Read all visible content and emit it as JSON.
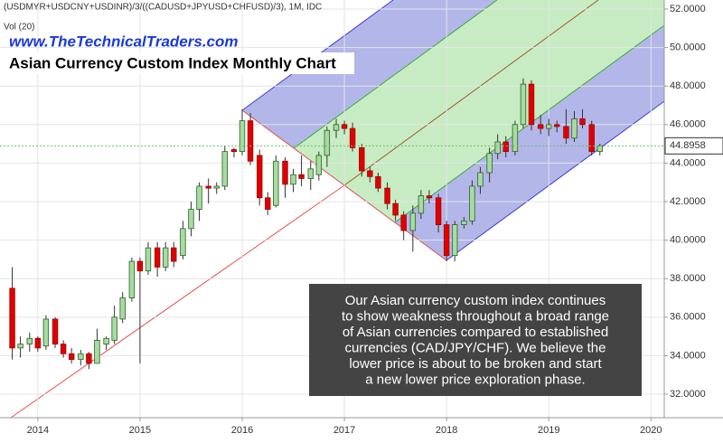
{
  "chart_data": {
    "type": "candlestick",
    "symbol": "(USDMYR+USDCNY+USDINR)/3/((CADUSD+JPYUSD+CHFUSD)/3), 1M, IDC",
    "volume_label": "Vol (20)",
    "website": "www.TheTechnicalTraders.com",
    "title": "Asian Currency Custom Index Monthly Chart",
    "annotation": [
      "Our Asian currency custom index continues",
      "to show weakness throughout a broad range",
      "of Asian currencies compared to established",
      "currencies (CAD/JPY/CHF).  We believe the",
      "lower price is about to be broken and start",
      "a new lower price exploration phase."
    ],
    "last_price": {
      "value": 44.8958,
      "label": "44.8958"
    },
    "up_color": "#a6dca0",
    "down_color": "#e00000",
    "xlim": [
      2013.63,
      2020.13
    ],
    "ylim": [
      30.78,
      52.47
    ],
    "xticks": [
      2014,
      2015,
      2016,
      2017,
      2018,
      2019,
      2020
    ],
    "yticks": [
      {
        "value": 32,
        "label": "32.0000"
      },
      {
        "value": 34,
        "label": "34.0000"
      },
      {
        "value": 36,
        "label": "36.0000"
      },
      {
        "value": 38,
        "label": "38.0000"
      },
      {
        "value": 40,
        "label": "40.0000"
      },
      {
        "value": 42,
        "label": "42.0000"
      },
      {
        "value": 44,
        "label": "44.0000"
      },
      {
        "value": 46,
        "label": "46.0000"
      },
      {
        "value": 48,
        "label": "48.0000"
      },
      {
        "value": 50,
        "label": "50.0000"
      },
      {
        "value": 52,
        "label": "52.0000"
      }
    ],
    "x": [
      2013.75,
      2013.83,
      2013.92,
      2014.0,
      2014.08,
      2014.17,
      2014.25,
      2014.33,
      2014.42,
      2014.5,
      2014.58,
      2014.67,
      2014.75,
      2014.83,
      2014.92,
      2015.0,
      2015.08,
      2015.17,
      2015.25,
      2015.33,
      2015.42,
      2015.5,
      2015.58,
      2015.67,
      2015.75,
      2015.83,
      2015.92,
      2016.0,
      2016.08,
      2016.17,
      2016.25,
      2016.33,
      2016.42,
      2016.5,
      2016.58,
      2016.67,
      2016.75,
      2016.83,
      2016.92,
      2017.0,
      2017.08,
      2017.17,
      2017.25,
      2017.33,
      2017.42,
      2017.5,
      2017.58,
      2017.67,
      2017.75,
      2017.83,
      2017.92,
      2018.0,
      2018.08,
      2018.17,
      2018.25,
      2018.33,
      2018.42,
      2018.5,
      2018.58,
      2018.67,
      2018.75,
      2018.83,
      2018.92,
      2019.0,
      2019.08,
      2019.17,
      2019.25,
      2019.33,
      2019.42,
      2019.5
    ],
    "open": [
      37.5,
      34.4,
      34.6,
      34.9,
      34.5,
      35.9,
      34.6,
      34.1,
      33.8,
      34.1,
      33.6,
      34.6,
      34.8,
      35.9,
      37.0,
      38.9,
      38.4,
      39.6,
      38.6,
      39.6,
      39.2,
      40.6,
      41.6,
      42.8,
      42.7,
      42.8,
      44.7,
      44.6,
      46.2,
      44.4,
      42.2,
      41.8,
      44.1,
      42.9,
      43.4,
      43.2,
      43.4,
      44.4,
      45.7,
      46.0,
      45.8,
      44.8,
      43.6,
      43.3,
      42.7,
      41.9,
      41.3,
      40.5,
      41.4,
      42.3,
      42.2,
      40.8,
      39.2,
      40.8,
      41.0,
      42.8,
      43.5,
      44.5,
      45.1,
      44.6,
      46.0,
      48.1,
      46.0,
      45.8,
      46.0,
      45.9,
      45.3,
      46.3,
      46.0,
      44.6
    ],
    "high": [
      38.6,
      35.0,
      35.2,
      35.0,
      36.1,
      36.0,
      34.8,
      34.4,
      34.3,
      34.2,
      35.4,
      35.0,
      36.6,
      37.3,
      39.1,
      39.1,
      39.9,
      39.9,
      39.9,
      39.9,
      41.0,
      42.0,
      43.0,
      43.2,
      43.0,
      44.9,
      44.8,
      46.8,
      46.6,
      44.7,
      42.5,
      44.4,
      44.3,
      43.7,
      44.4,
      44.1,
      44.6,
      45.9,
      46.3,
      46.2,
      46.1,
      45.0,
      43.8,
      43.5,
      43.0,
      42.1,
      41.5,
      41.8,
      42.6,
      42.6,
      42.4,
      41.0,
      41.0,
      41.2,
      43.1,
      43.8,
      44.8,
      45.5,
      45.4,
      46.2,
      48.4,
      48.3,
      46.5,
      46.3,
      46.2,
      46.8,
      46.7,
      46.8,
      46.2,
      45.0
    ],
    "low": [
      33.8,
      33.9,
      34.2,
      34.2,
      34.3,
      34.4,
      33.9,
      33.6,
      33.5,
      33.3,
      33.8,
      34.3,
      34.6,
      35.7,
      36.8,
      33.6,
      38.2,
      38.1,
      38.4,
      38.6,
      39.0,
      40.2,
      41.0,
      41.9,
      42.4,
      42.6,
      44.3,
      44.4,
      43.9,
      41.8,
      41.3,
      41.7,
      42.2,
      42.5,
      42.8,
      42.6,
      43.1,
      43.8,
      45.3,
      45.5,
      44.6,
      43.3,
      43.0,
      42.5,
      41.6,
      41.0,
      40.0,
      39.4,
      41.1,
      41.9,
      40.4,
      38.9,
      38.9,
      40.6,
      40.8,
      42.4,
      43.0,
      44.2,
      44.3,
      44.4,
      45.8,
      45.7,
      45.5,
      45.4,
      45.6,
      45.0,
      45.1,
      45.8,
      44.4,
      44.4
    ],
    "close": [
      34.4,
      34.6,
      34.9,
      34.4,
      35.9,
      34.6,
      34.1,
      33.8,
      34.1,
      33.6,
      34.8,
      34.9,
      36.0,
      37.0,
      38.9,
      38.4,
      39.6,
      38.6,
      39.6,
      38.9,
      40.6,
      41.6,
      42.8,
      42.7,
      42.8,
      44.6,
      44.6,
      46.2,
      44.1,
      42.2,
      41.6,
      44.1,
      42.9,
      43.4,
      43.2,
      43.7,
      44.4,
      45.7,
      46.0,
      45.8,
      44.8,
      43.6,
      43.3,
      42.7,
      41.9,
      41.3,
      40.5,
      41.4,
      42.3,
      42.2,
      40.8,
      39.2,
      40.8,
      41.0,
      42.8,
      43.5,
      44.5,
      45.1,
      44.6,
      46.0,
      48.1,
      46.0,
      45.8,
      46.0,
      45.9,
      45.3,
      46.3,
      46.0,
      44.6,
      44.9
    ]
  }
}
